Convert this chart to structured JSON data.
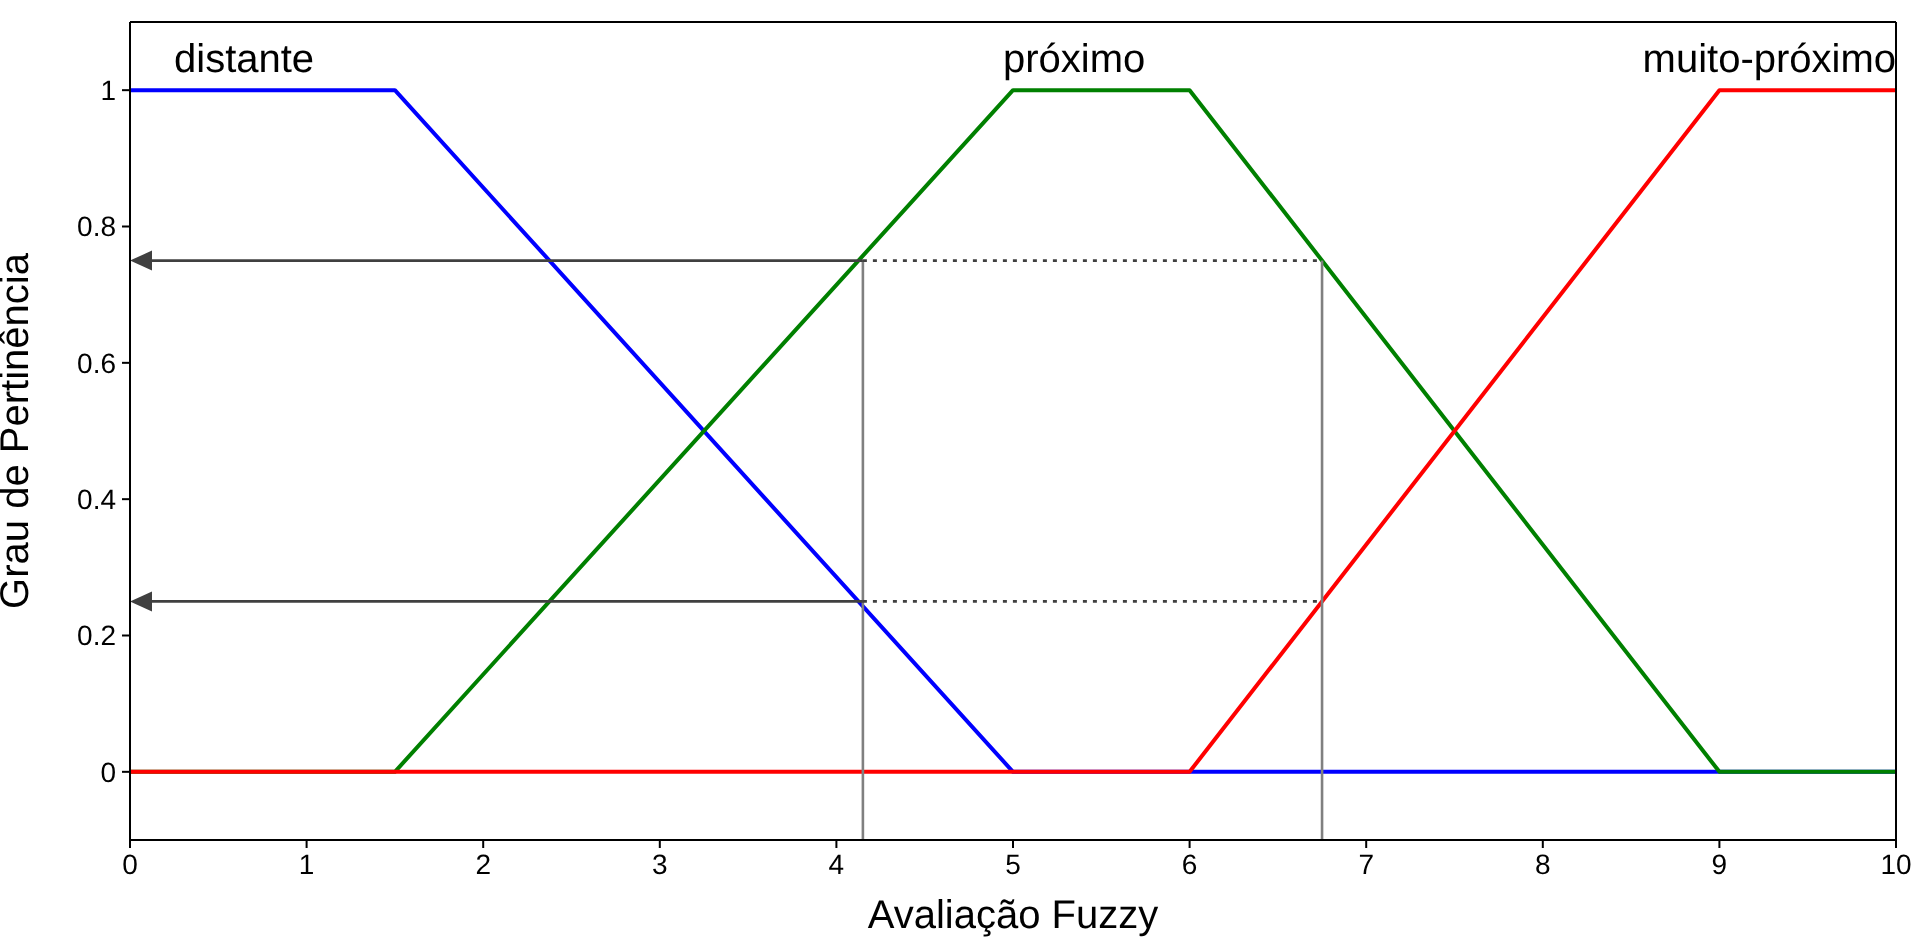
{
  "chart_data": {
    "type": "line",
    "xlabel": "Avaliação Fuzzy",
    "ylabel": "Grau de Pertinência",
    "xlim": [
      0,
      10
    ],
    "xticks": [
      0,
      1,
      2,
      3,
      4,
      5,
      6,
      7,
      8,
      9,
      10
    ],
    "ylim": [
      -0.1,
      1.1
    ],
    "yticks": [
      0,
      0.2,
      0.4,
      0.6,
      0.8,
      1
    ],
    "grid": false,
    "legend": false,
    "marker": "none",
    "series": [
      {
        "name": "distante",
        "color": "#0000ff",
        "x": [
          0,
          1.5,
          5,
          10
        ],
        "values": [
          1,
          1,
          0,
          0
        ]
      },
      {
        "name": "próximo",
        "color": "#008000",
        "x": [
          0,
          1.5,
          5,
          6,
          9,
          10
        ],
        "values": [
          0,
          0,
          1,
          1,
          0,
          0
        ]
      },
      {
        "name": "muito-próximo",
        "color": "#ff0000",
        "x": [
          0,
          6,
          9,
          10
        ],
        "values": [
          0,
          0,
          1,
          1
        ]
      },
      {
        "color": "#808080",
        "x": [
          4.15,
          4.15
        ],
        "values": [
          -0.1,
          0.75
        ]
      },
      {
        "color": "#808080",
        "x": [
          6.75,
          6.75
        ],
        "values": [
          -0.1,
          0.75
        ]
      },
      {
        "color": "#404040",
        "x": [
          4.15,
          6.75
        ],
        "values": [
          0.75,
          0.75
        ],
        "line_style": "dotted"
      },
      {
        "color": "#404040",
        "x": [
          4.15,
          6.75
        ],
        "values": [
          0.25,
          0.25
        ],
        "line_style": "dotted"
      }
    ]
  }
}
